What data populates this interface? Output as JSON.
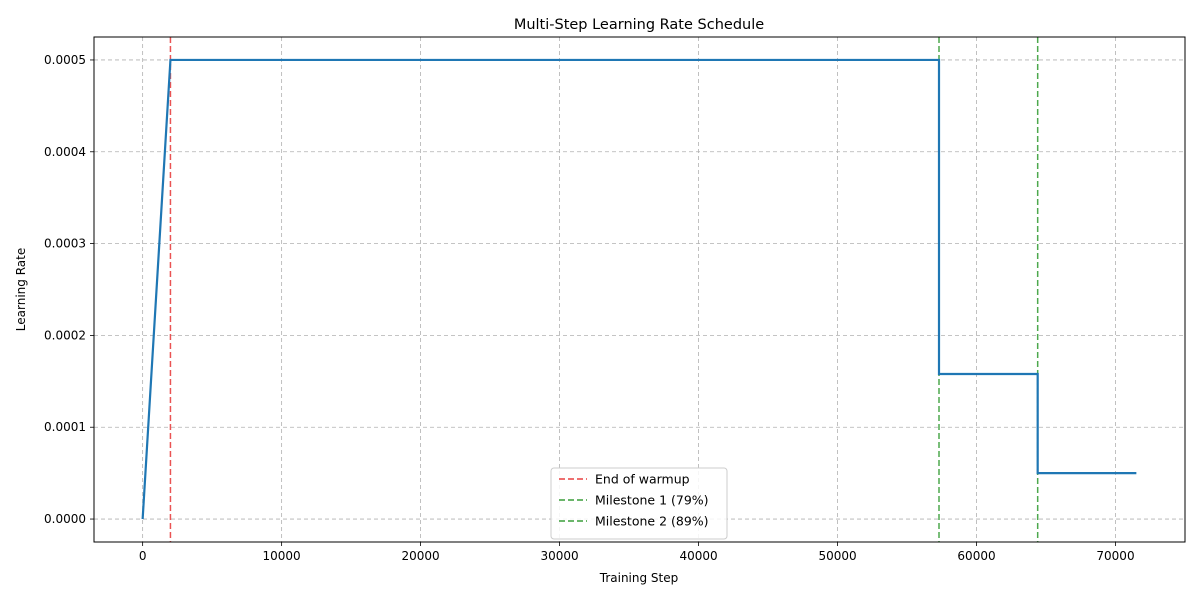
{
  "chart_data": {
    "type": "line",
    "title": "Multi-Step Learning Rate Schedule",
    "xlabel": "Training Step",
    "ylabel": "Learning Rate",
    "xlim": [
      -3500,
      75000
    ],
    "ylim": [
      -2.5e-05,
      0.000525
    ],
    "xticks": [
      0,
      10000,
      20000,
      30000,
      40000,
      50000,
      60000,
      70000
    ],
    "xtick_labels": [
      "0",
      "10000",
      "20000",
      "30000",
      "40000",
      "50000",
      "60000",
      "70000"
    ],
    "yticks": [
      0,
      0.0001,
      0.0002,
      0.0003,
      0.0004,
      0.0005
    ],
    "ytick_labels": [
      "0.0000",
      "0.0001",
      "0.0002",
      "0.0003",
      "0.0004",
      "0.0005"
    ],
    "grid": true,
    "legend_position": "bottom-center",
    "series": [
      {
        "color": "#1f77b4",
        "x": [
          0,
          2000,
          57300,
          57300,
          64400,
          64400,
          71500
        ],
        "y": [
          0,
          0.0005,
          0.0005,
          0.000158,
          0.000158,
          5e-05,
          5e-05
        ]
      }
    ],
    "vlines": [
      {
        "x": 2000,
        "label": "End of warmup",
        "color": "#e84040"
      },
      {
        "x": 57300,
        "label": "Milestone 1 (79%)",
        "color": "#3a9e3a"
      },
      {
        "x": 64400,
        "label": "Milestone 2 (89%)",
        "color": "#3a9e3a"
      }
    ]
  }
}
